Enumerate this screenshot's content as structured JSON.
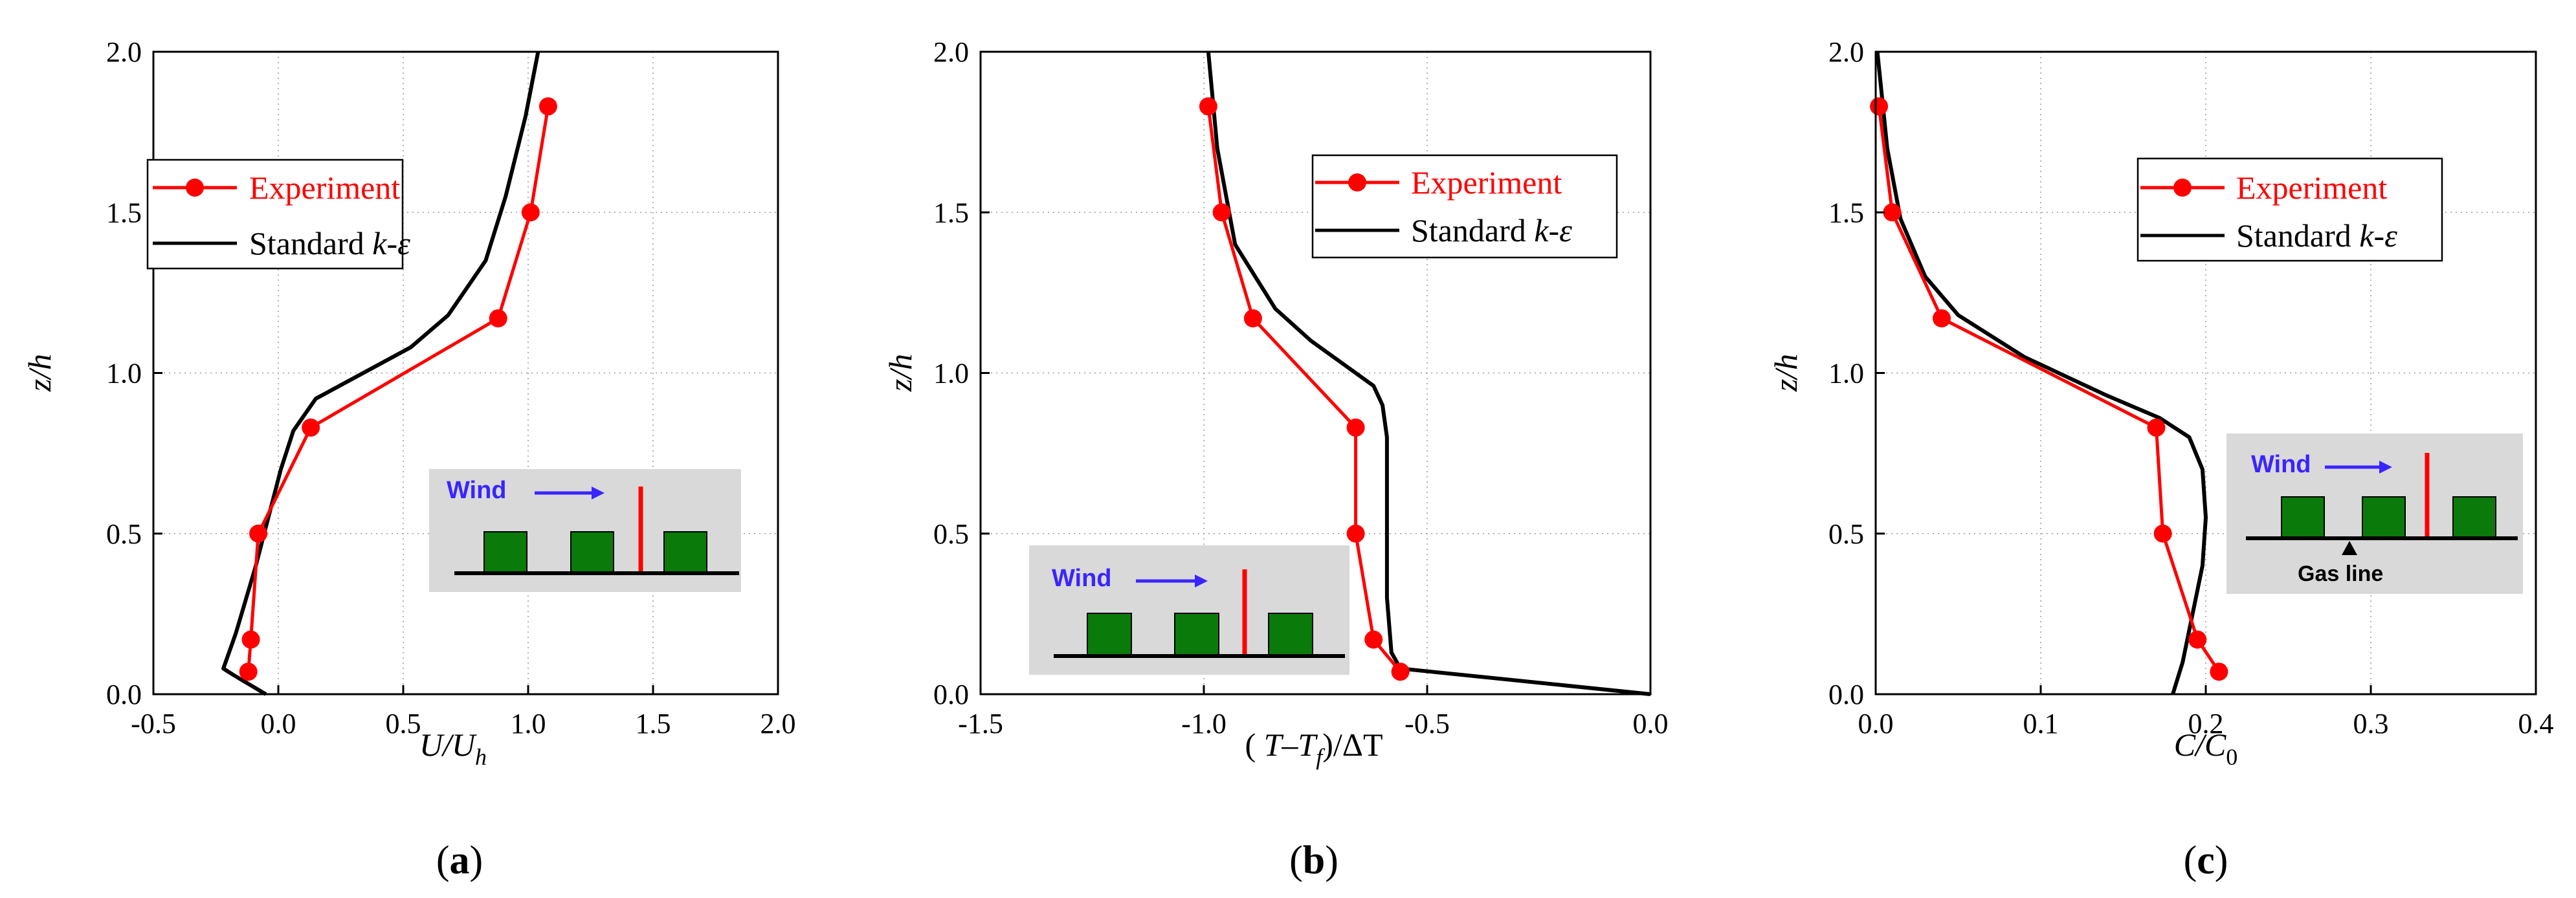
{
  "colors": {
    "experiment": "#ff0000",
    "standard": "#000000",
    "inset_bg": "#d9d9d9",
    "building": "#0a7a0a",
    "wind": "#3a24ff",
    "grid": "#9a9a9a"
  },
  "chart_data": [
    {
      "type": "line",
      "panel_label": "a",
      "xlabel": "U/U_h",
      "ylabel": "z/h",
      "xlim": [
        -0.5,
        2.0
      ],
      "ylim": [
        0.0,
        2.0
      ],
      "x_ticks": [
        "-0.5",
        "0.0",
        "0.5",
        "1.0",
        "1.5",
        "2.0"
      ],
      "y_ticks": [
        "0.0",
        "0.5",
        "1.0",
        "1.5",
        "2.0"
      ],
      "grid": true,
      "legend": {
        "entries": [
          "Experiment",
          "Standard k-ε"
        ],
        "position": "upper-left"
      },
      "series": [
        {
          "name": "Experiment",
          "marker": "circle",
          "x": [
            -0.12,
            -0.11,
            -0.08,
            0.13,
            0.88,
            1.01,
            1.08
          ],
          "y": [
            0.07,
            0.17,
            0.5,
            0.83,
            1.17,
            1.5,
            1.83
          ]
        },
        {
          "name": "Standard k-ε",
          "marker": "none",
          "x": [
            -0.05,
            -0.18,
            -0.22,
            -0.17,
            -0.09,
            -0.04,
            0.01,
            0.06,
            0.15,
            0.53,
            0.68,
            0.83,
            0.91,
            0.99,
            1.04
          ],
          "y": [
            0.0,
            0.06,
            0.08,
            0.19,
            0.4,
            0.55,
            0.7,
            0.82,
            0.92,
            1.08,
            1.18,
            1.35,
            1.55,
            1.8,
            2.0
          ]
        }
      ],
      "inset": {
        "label": "Wind",
        "gas_line_label": ""
      }
    },
    {
      "type": "line",
      "panel_label": "b",
      "xlabel": "(T-T_f)/ΔT",
      "ylabel": "z/h",
      "xlim": [
        -1.5,
        0.0
      ],
      "ylim": [
        0.0,
        2.0
      ],
      "x_ticks": [
        "-1.5",
        "-1.0",
        "-0.5",
        "0.0"
      ],
      "y_ticks": [
        "0.0",
        "0.5",
        "1.0",
        "1.5",
        "2.0"
      ],
      "grid": true,
      "legend": {
        "entries": [
          "Experiment",
          "Standard k-ε"
        ],
        "position": "upper-right"
      },
      "series": [
        {
          "name": "Experiment",
          "marker": "circle",
          "x": [
            -0.56,
            -0.62,
            -0.66,
            -0.66,
            -0.89,
            -0.96,
            -0.99
          ],
          "y": [
            0.07,
            0.17,
            0.5,
            0.83,
            1.17,
            1.5,
            1.83
          ]
        },
        {
          "name": "Standard k-ε",
          "marker": "none",
          "x": [
            0.0,
            -0.56,
            -0.58,
            -0.59,
            -0.59,
            -0.59,
            -0.6,
            -0.62,
            -0.68,
            -0.76,
            -0.84,
            -0.93,
            -0.97,
            -0.99
          ],
          "y": [
            0.0,
            0.08,
            0.13,
            0.3,
            0.6,
            0.8,
            0.9,
            0.96,
            1.02,
            1.1,
            1.2,
            1.4,
            1.7,
            2.0
          ]
        }
      ],
      "inset": {
        "label": "Wind",
        "gas_line_label": ""
      }
    },
    {
      "type": "line",
      "panel_label": "c",
      "xlabel": "C/C_0",
      "ylabel": "z/h",
      "xlim": [
        0.0,
        0.4
      ],
      "ylim": [
        0.0,
        2.0
      ],
      "x_ticks": [
        "0.0",
        "0.1",
        "0.2",
        "0.3",
        "0.4"
      ],
      "y_ticks": [
        "0.0",
        "0.5",
        "1.0",
        "1.5",
        "2.0"
      ],
      "grid": true,
      "legend": {
        "entries": [
          "Experiment",
          "Standard k-ε"
        ],
        "position": "upper-right"
      },
      "series": [
        {
          "name": "Experiment",
          "marker": "circle",
          "x": [
            0.208,
            0.195,
            0.174,
            0.17,
            0.04,
            0.01,
            0.002
          ],
          "y": [
            0.07,
            0.17,
            0.5,
            0.83,
            1.17,
            1.5,
            1.83
          ]
        },
        {
          "name": "Standard k-ε",
          "marker": "none",
          "x": [
            0.18,
            0.186,
            0.192,
            0.198,
            0.2,
            0.198,
            0.19,
            0.172,
            0.14,
            0.09,
            0.05,
            0.03,
            0.015,
            0.007,
            0.003,
            0.001
          ],
          "y": [
            0.0,
            0.1,
            0.25,
            0.4,
            0.55,
            0.7,
            0.8,
            0.86,
            0.93,
            1.05,
            1.18,
            1.3,
            1.48,
            1.7,
            1.9,
            2.0
          ]
        }
      ],
      "inset": {
        "label": "Wind",
        "gas_line_label": "Gas line"
      }
    }
  ]
}
